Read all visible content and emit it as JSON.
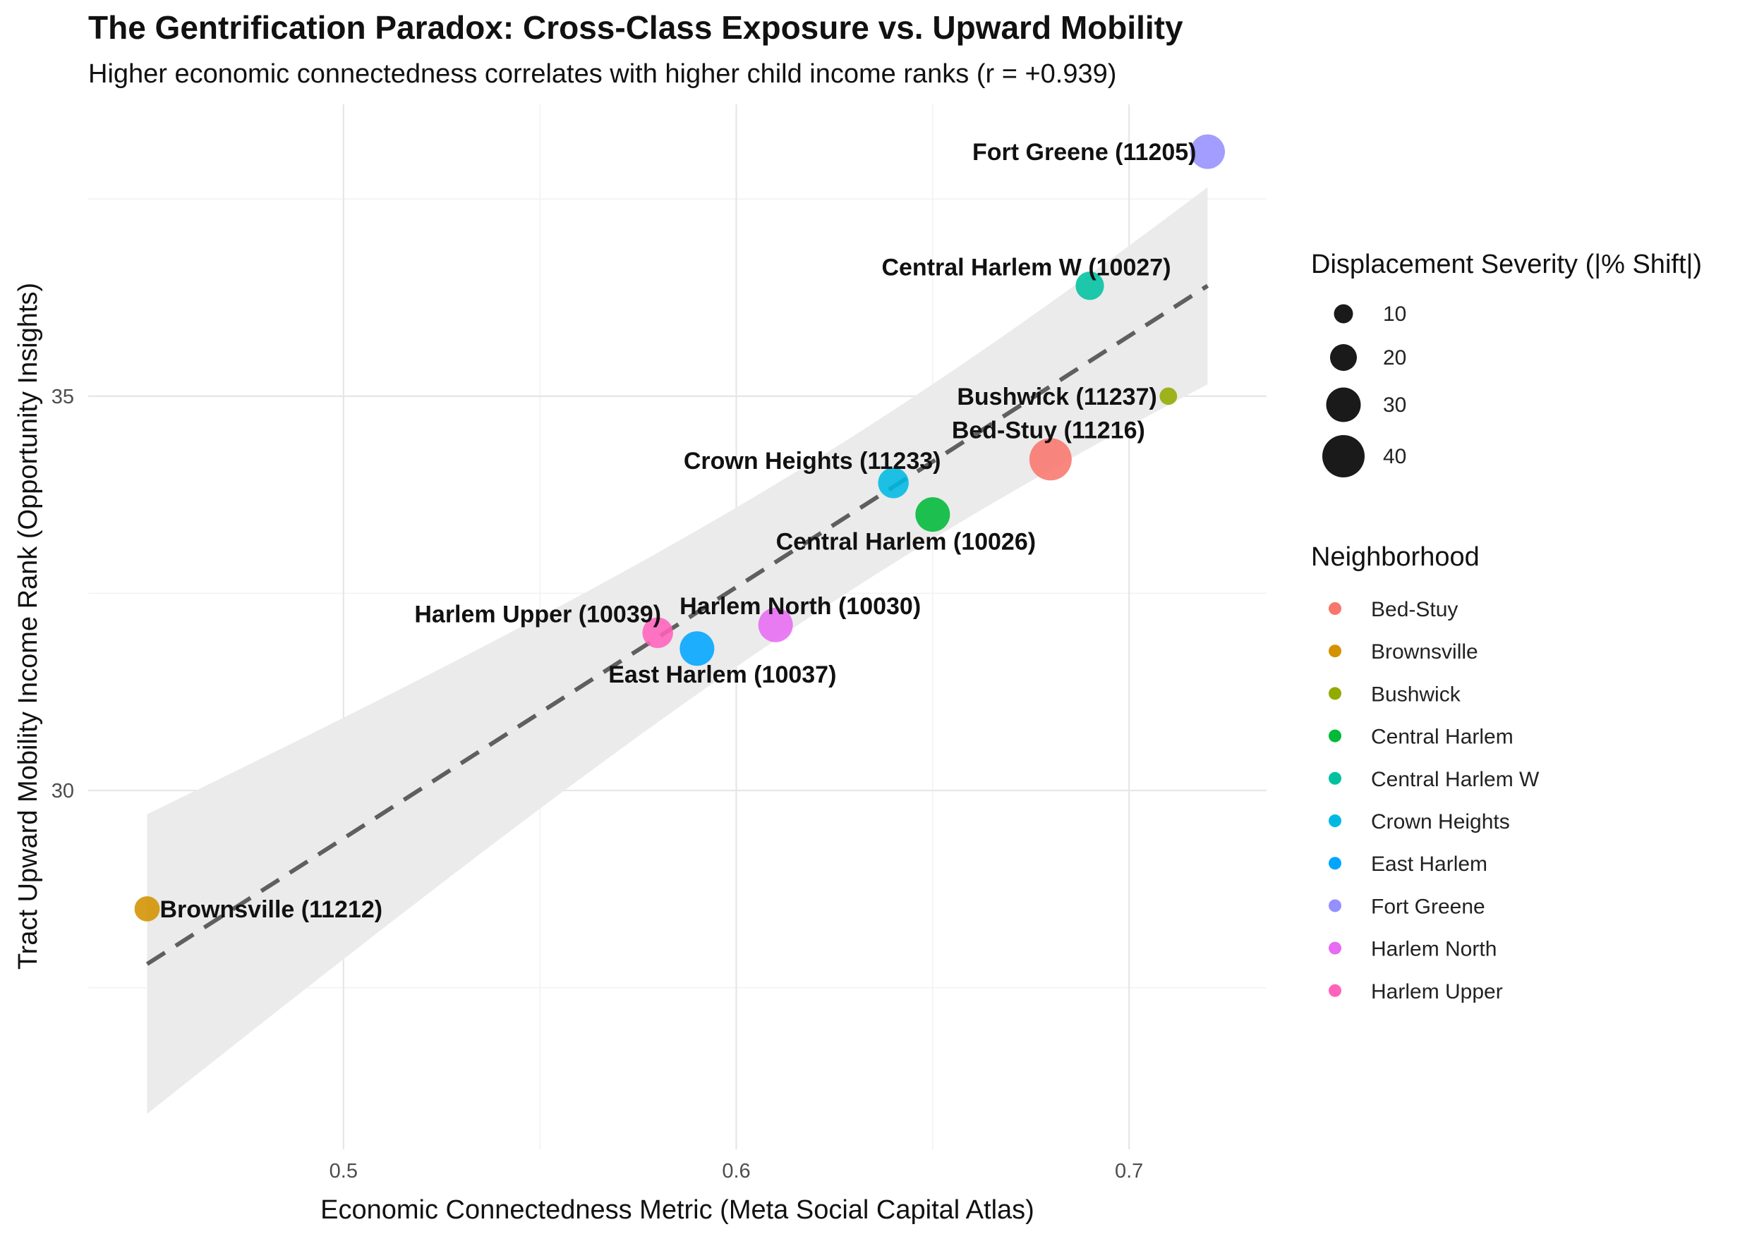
{
  "colors": {
    "ribbon": "#ebebeb",
    "trend_line": "#5f5f5f",
    "grid_major": "#e6e6e6",
    "grid_minor": "#f2f2f2",
    "size_legend_point": "#1a1a1a"
  },
  "chart_data": {
    "type": "scatter",
    "title": "The Gentrification Paradox: Cross-Class Exposure vs. Upward Mobility",
    "subtitle": "Higher economic connectedness correlates with higher child income ranks (r = +0.939)",
    "xlabel": "Economic Connectedness Metric (Meta Social Capital Atlas)",
    "ylabel": "Tract Upward Mobility Income Rank (Opportunity Insights)",
    "xlim": [
      0.435,
      0.735
    ],
    "ylim": [
      25.45,
      38.7
    ],
    "x_ticks": [
      0.5,
      0.6,
      0.7
    ],
    "x_tick_labels": [
      "0.5",
      "0.6",
      "0.7"
    ],
    "y_ticks": [
      30,
      35
    ],
    "y_tick_labels": [
      "30",
      "35"
    ],
    "grid": true,
    "legend_position": "right",
    "trend": {
      "method": "linear",
      "x": [
        0.45,
        0.72
      ],
      "y": [
        27.8,
        36.4
      ],
      "band_lower": [
        25.9,
        35.25
      ],
      "band_upper": [
        29.7,
        37.75
      ]
    },
    "points": [
      {
        "name": "Bed-Stuy",
        "label": "Bed-Stuy (11216)",
        "x": 0.68,
        "y": 34.2,
        "size": 40,
        "color": "#F8766D"
      },
      {
        "name": "Brownsville",
        "label": "Brownsville (11212)",
        "x": 0.45,
        "y": 28.5,
        "size": 18,
        "color": "#D39200"
      },
      {
        "name": "Bushwick",
        "label": "Bushwick (11237)",
        "x": 0.71,
        "y": 35.0,
        "size": 8,
        "color": "#93AA00"
      },
      {
        "name": "Central Harlem",
        "label": "Central Harlem (10026)",
        "x": 0.65,
        "y": 33.5,
        "size": 30,
        "color": "#00BA38"
      },
      {
        "name": "Central Harlem W",
        "label": "Central Harlem W (10027)",
        "x": 0.69,
        "y": 36.4,
        "size": 22,
        "color": "#00C19F"
      },
      {
        "name": "Crown Heights",
        "label": "Crown Heights (11233)",
        "x": 0.64,
        "y": 33.9,
        "size": 25,
        "color": "#00B9E3"
      },
      {
        "name": "East Harlem",
        "label": "East Harlem (10037)",
        "x": 0.59,
        "y": 31.8,
        "size": 30,
        "color": "#00A5FF"
      },
      {
        "name": "Fort Greene",
        "label": "Fort Greene (11205)",
        "x": 0.72,
        "y": 38.1,
        "size": 30,
        "color": "#9590FF"
      },
      {
        "name": "Harlem North",
        "label": "Harlem North (10030)",
        "x": 0.61,
        "y": 32.1,
        "size": 30,
        "color": "#E76BF3"
      },
      {
        "name": "Harlem Upper",
        "label": "Harlem Upper (10039)",
        "x": 0.58,
        "y": 32.0,
        "size": 25,
        "color": "#FF62BC"
      }
    ],
    "size_legend": {
      "title": "Displacement Severity (|% Shift|)",
      "values": [
        10,
        20,
        30,
        40
      ],
      "labels": [
        "10",
        "20",
        "30",
        "40"
      ]
    },
    "color_legend": {
      "title": "Neighborhood",
      "entries": [
        "Bed-Stuy",
        "Brownsville",
        "Bushwick",
        "Central Harlem",
        "Central Harlem W",
        "Crown Heights",
        "East Harlem",
        "Fort Greene",
        "Harlem North",
        "Harlem Upper"
      ]
    }
  }
}
